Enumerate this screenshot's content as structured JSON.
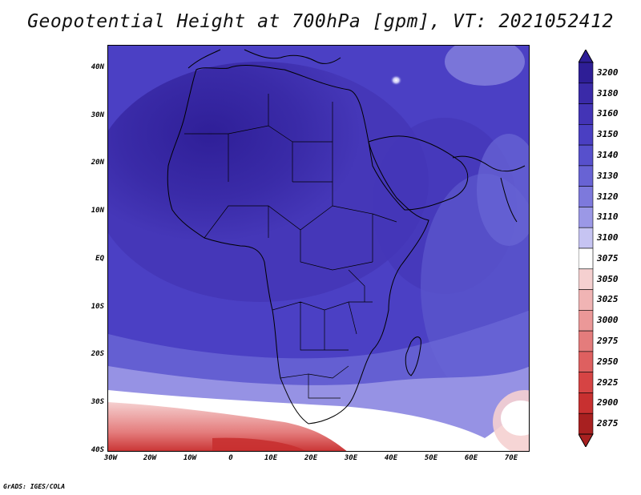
{
  "title": "Geopotential Height at 700hPa [gpm], VT: 2021052412",
  "credit": "GrADS: IGES/COLA",
  "lat_labels": [
    "40N",
    "30N",
    "20N",
    "10N",
    "EQ",
    "10S",
    "20S",
    "30S",
    "40S"
  ],
  "lon_labels": [
    "30W",
    "20W",
    "10W",
    "0",
    "10E",
    "20E",
    "30E",
    "40E",
    "50E",
    "60E",
    "70E"
  ],
  "colorbar": {
    "levels": [
      "3200",
      "3180",
      "3160",
      "3150",
      "3140",
      "3130",
      "3120",
      "3110",
      "3100",
      "3075",
      "3050",
      "3025",
      "3000",
      "2975",
      "2950",
      "2925",
      "2900",
      "2875"
    ],
    "colors": [
      "#2e1e96",
      "#3a2aa8",
      "#4334b6",
      "#4a3fc2",
      "#5750cc",
      "#6863d4",
      "#7d79dc",
      "#9b98e6",
      "#c6c4f2",
      "#ffffff",
      "#f5d0d0",
      "#f0b4b4",
      "#eb9898",
      "#e47c7c",
      "#de6060",
      "#d64444",
      "#c83030",
      "#a82020"
    ]
  },
  "colors": {
    "sahara_high": "#3424a0",
    "ocean_mid": "#4b40c4",
    "low_south": "#d84848"
  }
}
